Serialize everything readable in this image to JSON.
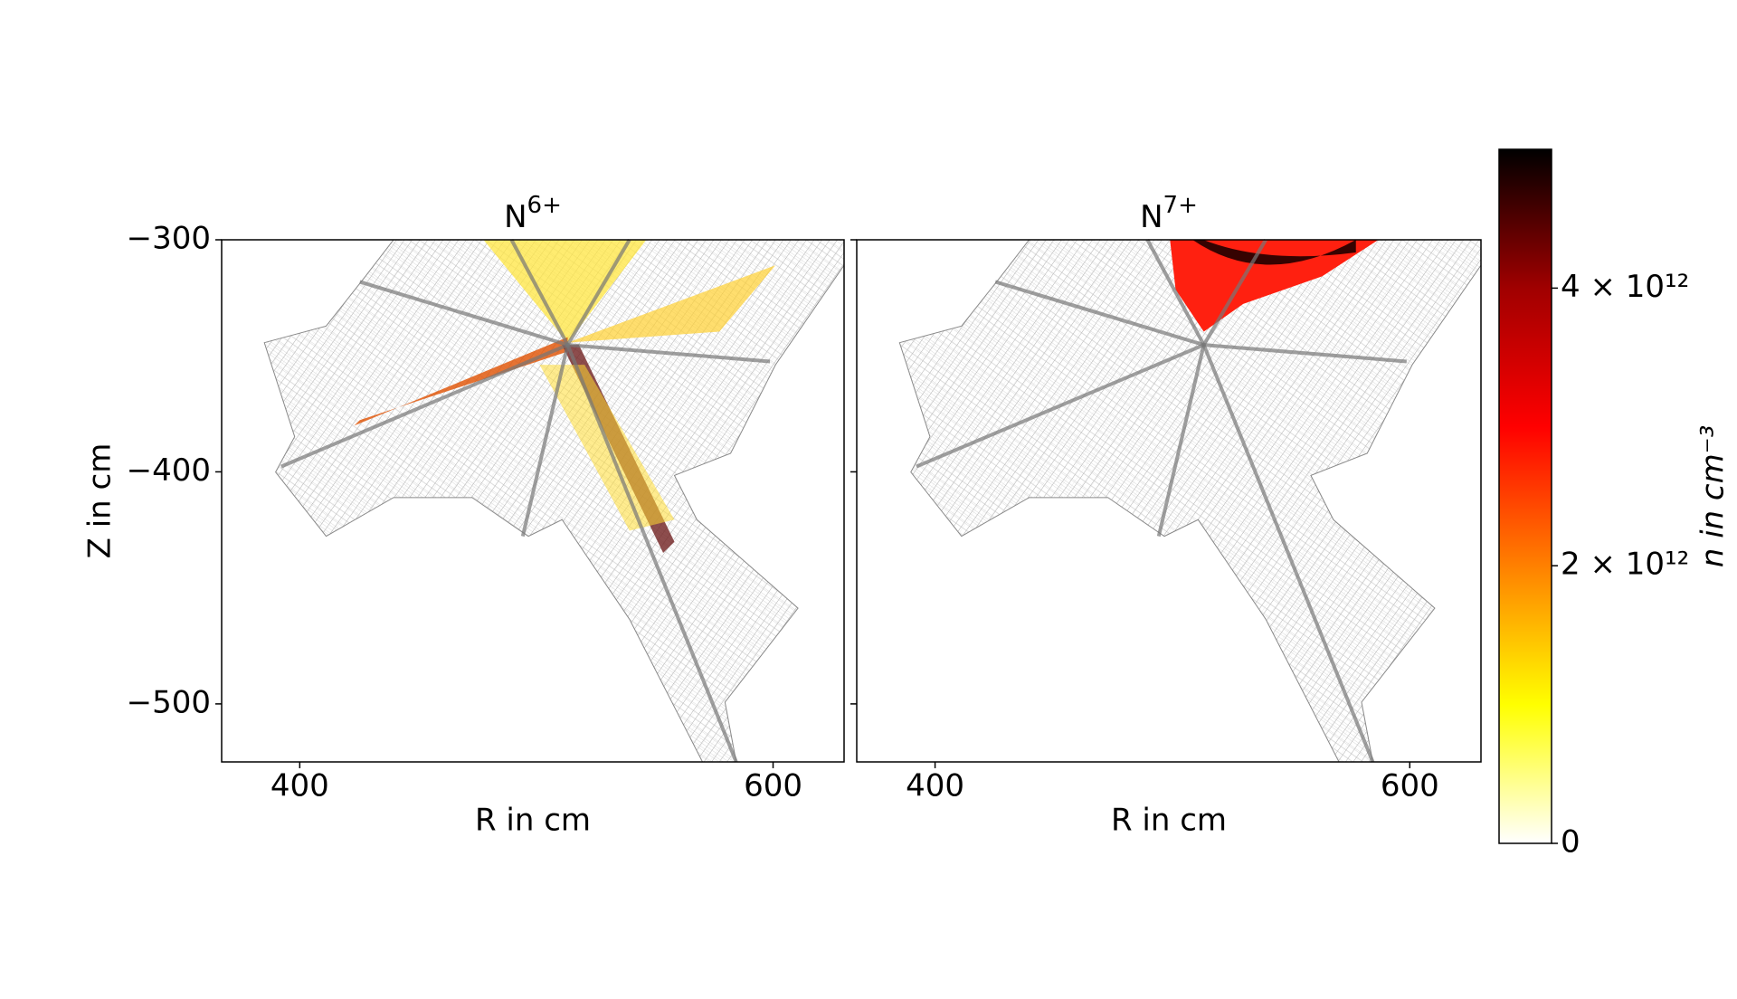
{
  "chart_data": [
    {
      "type": "mesh",
      "title": "N",
      "title_superscript": "6+",
      "xlabel": "R in cm",
      "ylabel": "Z in cm",
      "xlim": [
        367,
        630
      ],
      "ylim": [
        -525,
        -300
      ],
      "xticks": [
        400,
        600
      ],
      "yticks": [
        {
          "value": -300,
          "label": "−300"
        },
        {
          "value": -400,
          "label": "−400"
        },
        {
          "value": -500,
          "label": "−500"
        }
      ],
      "sharey": false
    },
    {
      "type": "mesh",
      "title": "N",
      "title_superscript": "7+",
      "xlabel": "R in cm",
      "xlim": [
        367,
        630
      ],
      "ylim": [
        -525,
        -300
      ],
      "xticks": [
        400,
        600
      ],
      "yticks": [
        -300,
        -400,
        -500
      ],
      "sharey": true
    }
  ],
  "colorbar": {
    "label": "n in cm⁻³",
    "clim": [
      0,
      5000000000000
    ],
    "ticks": [
      0,
      {
        "value": 2000000000000,
        "label": "2 × 10¹²"
      },
      {
        "value": 4000000000000,
        "label": "4 × 10¹²"
      }
    ],
    "colors": [
      "#ffffff",
      "#ffff00",
      "#ff8000",
      "#ff0000",
      "#a00000",
      "#000000"
    ]
  }
}
